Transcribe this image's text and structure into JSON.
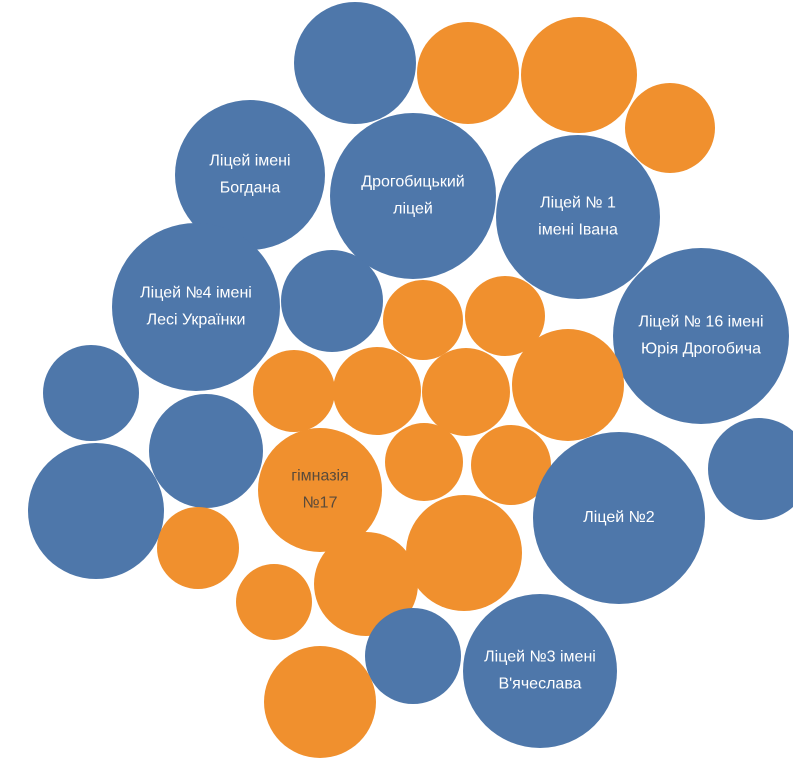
{
  "colors": {
    "blue": "#4e77aa",
    "orange": "#f0902e",
    "label_on_blue": "#ffffff",
    "label_on_orange": "#5a4a3a",
    "background": "#ffffff"
  },
  "chart_data": {
    "type": "bubble",
    "title": "",
    "legend": "none",
    "series": [
      {
        "group": "blue"
      },
      {
        "group": "orange"
      }
    ],
    "bubbles": [
      {
        "group": "blue",
        "label": [],
        "size": 61
      },
      {
        "group": "orange",
        "label": [],
        "size": 51
      },
      {
        "group": "orange",
        "label": [],
        "size": 58
      },
      {
        "group": "orange",
        "label": [],
        "size": 45
      },
      {
        "group": "blue",
        "label": [
          "Ліцей імені",
          "Богдана"
        ],
        "size": 75
      },
      {
        "group": "blue",
        "label": [
          "Дрогобицький",
          "ліцей"
        ],
        "size": 83
      },
      {
        "group": "blue",
        "label": [
          "Ліцей № 1",
          "імені Івана"
        ],
        "size": 82
      },
      {
        "group": "blue",
        "label": [
          "Ліцей №4 імені",
          "Лесі Українки"
        ],
        "size": 84
      },
      {
        "group": "blue",
        "label": [],
        "size": 51
      },
      {
        "group": "orange",
        "label": [],
        "size": 40
      },
      {
        "group": "orange",
        "label": [],
        "size": 40
      },
      {
        "group": "blue",
        "label": [
          "Ліцей № 16 імені",
          "Юрія Дрогобича"
        ],
        "size": 88
      },
      {
        "group": "blue",
        "label": [],
        "size": 48
      },
      {
        "group": "orange",
        "label": [],
        "size": 41
      },
      {
        "group": "orange",
        "label": [],
        "size": 44
      },
      {
        "group": "orange",
        "label": [],
        "size": 44
      },
      {
        "group": "orange",
        "label": [],
        "size": 56
      },
      {
        "group": "blue",
        "label": [],
        "size": 57
      },
      {
        "group": "blue",
        "label": [],
        "size": 51
      },
      {
        "group": "orange",
        "label": [
          "гімназія",
          "№17"
        ],
        "size": 62
      },
      {
        "group": "orange",
        "label": [],
        "size": 39
      },
      {
        "group": "orange",
        "label": [],
        "size": 40
      },
      {
        "group": "blue",
        "label": [],
        "size": 68
      },
      {
        "group": "blue",
        "label": [
          "Ліцей №2"
        ],
        "size": 86
      },
      {
        "group": "orange",
        "label": [],
        "size": 41
      },
      {
        "group": "orange",
        "label": [],
        "size": 58
      },
      {
        "group": "orange",
        "label": [],
        "size": 38
      },
      {
        "group": "orange",
        "label": [],
        "size": 52
      },
      {
        "group": "blue",
        "label": [],
        "size": 48
      },
      {
        "group": "blue",
        "label": [
          "Ліцей №3 імені",
          "В'ячеслава"
        ],
        "size": 77
      },
      {
        "group": "orange",
        "label": [],
        "size": 56
      }
    ]
  }
}
